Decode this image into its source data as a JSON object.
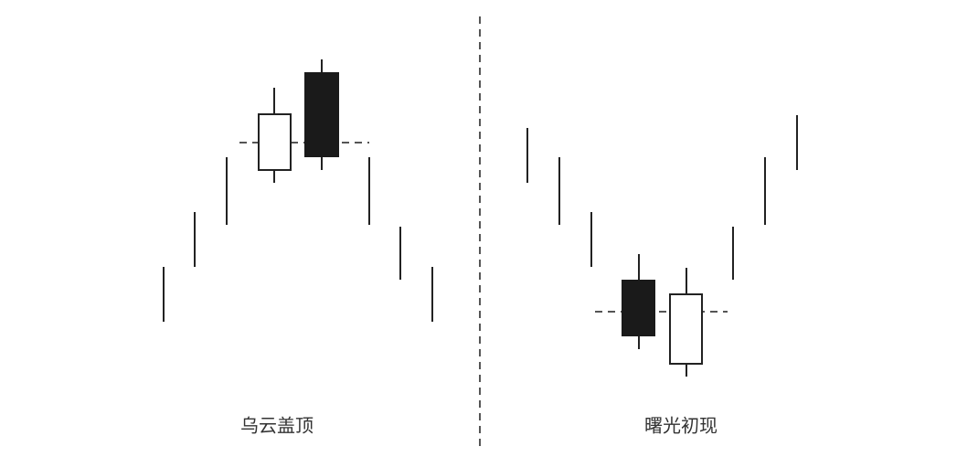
{
  "panels": [
    {
      "label": "乌云盖顶"
    },
    {
      "label": "曙光初现"
    }
  ]
}
